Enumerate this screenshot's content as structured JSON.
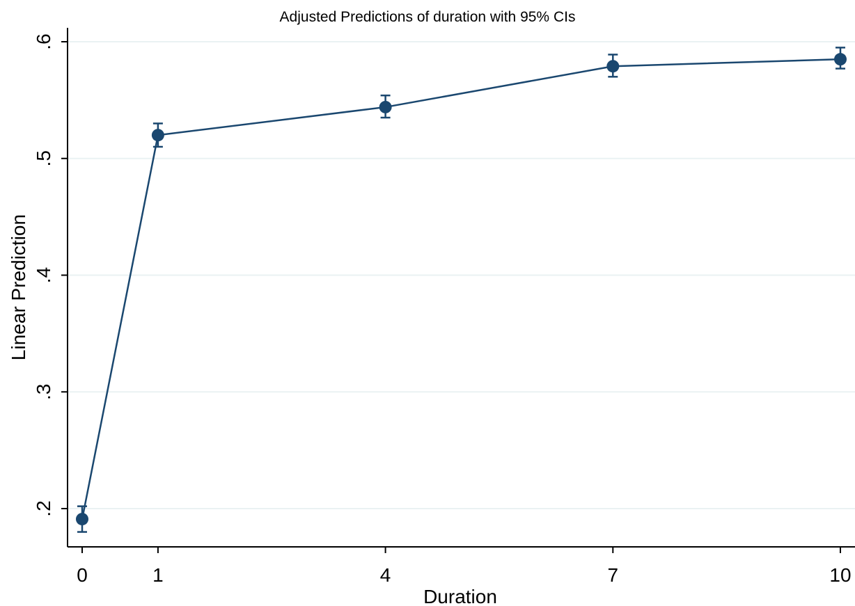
{
  "chart_data": {
    "type": "line",
    "title": "Adjusted Predictions of duration with 95% CIs",
    "xlabel": "Duration",
    "ylabel": "Linear Prediction",
    "x": [
      0,
      1,
      4,
      7,
      10
    ],
    "x_tick_labels": [
      "0",
      "1",
      "4",
      "7",
      "10"
    ],
    "y_ticks": [
      0.2,
      0.3,
      0.4,
      0.5,
      0.6
    ],
    "y_tick_labels": [
      ".2",
      ".3",
      ".4",
      ".5",
      ".6"
    ],
    "xlim": [
      0,
      10
    ],
    "ylim": [
      0.17,
      0.62
    ],
    "grid": true,
    "series": [
      {
        "values": [
          0.191,
          0.52,
          0.544,
          0.579,
          0.585
        ],
        "ci_lower": [
          0.18,
          0.51,
          0.535,
          0.57,
          0.577
        ],
        "ci_upper": [
          0.202,
          0.53,
          0.554,
          0.589,
          0.595
        ]
      }
    ],
    "colors": {
      "series": "#1a476f",
      "grid": "#eaf2f3",
      "axis": "#000000"
    }
  }
}
